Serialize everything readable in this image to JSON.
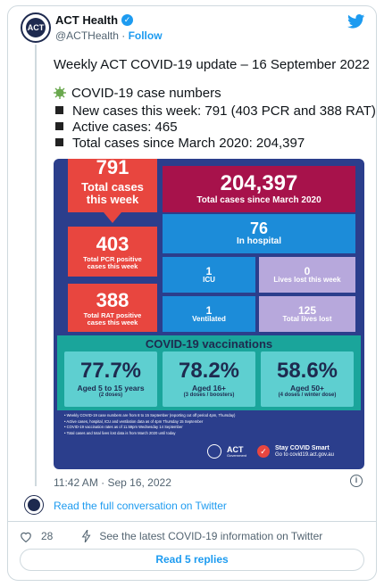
{
  "account": {
    "name": "ACT Health",
    "handle": "@ACTHealth",
    "separator": "·",
    "follow_label": "Follow",
    "avatar_text": "ACT"
  },
  "tweet": {
    "headline": "Weekly ACT COVID-19 update – 16 September 2022",
    "section": "COVID-19 case numbers",
    "bullets": [
      "New cases this week: 791 (403 PCR and 388 RAT)",
      "Active cases: 465",
      "Total cases since March 2020: 204,397"
    ]
  },
  "infographic": {
    "cases_week_value": "791",
    "cases_week_label": "Total cases this week",
    "total_value": "204,397",
    "total_label": "Total cases since March 2020",
    "pcr_value": "403",
    "pcr_label": "Total PCR positive cases this week",
    "rat_value": "388",
    "rat_label": "Total RAT positive cases this week",
    "hospital_value": "76",
    "hospital_label": "In hospital",
    "icu_value": "1",
    "icu_label": "ICU",
    "lives_week_value": "0",
    "lives_week_label": "Lives lost this week",
    "ventilated_value": "1",
    "ventilated_label": "Ventilated",
    "lives_total_value": "125",
    "lives_total_label": "Total lives lost",
    "vacc_title": "COVID-19 vaccinations",
    "vacc": [
      {
        "pct": "77.7%",
        "label": "Aged 5 to 15 years",
        "sub": "(2 doses)"
      },
      {
        "pct": "78.2%",
        "label": "Aged 16+",
        "sub": "(3 doses / boosters)"
      },
      {
        "pct": "58.6%",
        "label": "Aged 50+",
        "sub": "(4 doses / winter dose)"
      }
    ],
    "notes": [
      "Weekly COVID-19 case numbers are from 8 to 15 September (reporting cut off period 4pm, Thursday)",
      "Active cases, hospital, ICU and ventilation data as of 4pm Thursday 15 September",
      "COVID-19 vaccination rates as of 11.59pm Wednesday 14 September",
      "Total cases and total lives lost data is from March 2020 until today"
    ],
    "logo_text": "ACT",
    "logo_sub": "Government",
    "smart_title": "Stay COVID Smart",
    "smart_sub": "Go to covid19.act.gov.au"
  },
  "meta": {
    "time": "11:42 AM · Sep 16, 2022",
    "read_full": "Read the full conversation on Twitter",
    "likes": "28",
    "latest_info": "See the latest COVID-19 information on Twitter",
    "read_replies": "Read 5 replies"
  },
  "colors": {
    "twitter_blue": "#1d9bf0",
    "info_bg": "#2b3e8c",
    "red": "#e8463f",
    "maroon": "#a7124b",
    "teal": "#1aa59b"
  }
}
